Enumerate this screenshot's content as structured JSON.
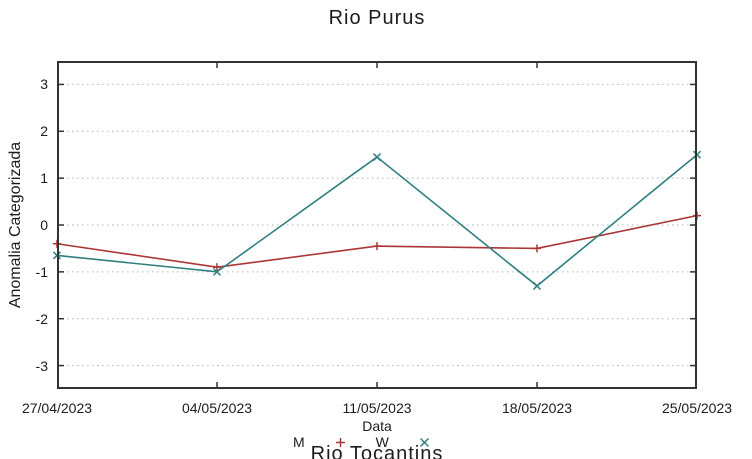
{
  "title": "Rio Purus",
  "axes": {
    "ylabel": "Anomalia Categorizada",
    "xlabel": "Data"
  },
  "next_chart_title_partial": "Rio Tocantins",
  "colors": {
    "series_red": "#aa3636",
    "series_teal": "#2d8080",
    "grid": "#b4b4b4",
    "border": "#333333"
  },
  "chart_data": {
    "type": "line",
    "title": "Rio Purus",
    "xlabel": "Data",
    "ylabel": "Anomalia Categorizada",
    "categories": [
      "27/04/2023",
      "04/05/2023",
      "11/05/2023",
      "18/05/2023",
      "25/05/2023"
    ],
    "series": [
      {
        "name": "M",
        "color": "#aa3636",
        "marker": "plus",
        "values": [
          -0.4,
          -0.9,
          -0.45,
          -0.5,
          0.2
        ]
      },
      {
        "name": "W",
        "color": "#2d8080",
        "marker": "cross",
        "values": [
          -0.65,
          -1.0,
          1.45,
          -1.3,
          1.5
        ]
      }
    ],
    "ylim": [
      -3.5,
      3.5
    ],
    "yticks": [
      3,
      2,
      1,
      0,
      -1,
      -2,
      -3
    ],
    "grid": "dotted-horizontal",
    "legend_position": "below"
  }
}
